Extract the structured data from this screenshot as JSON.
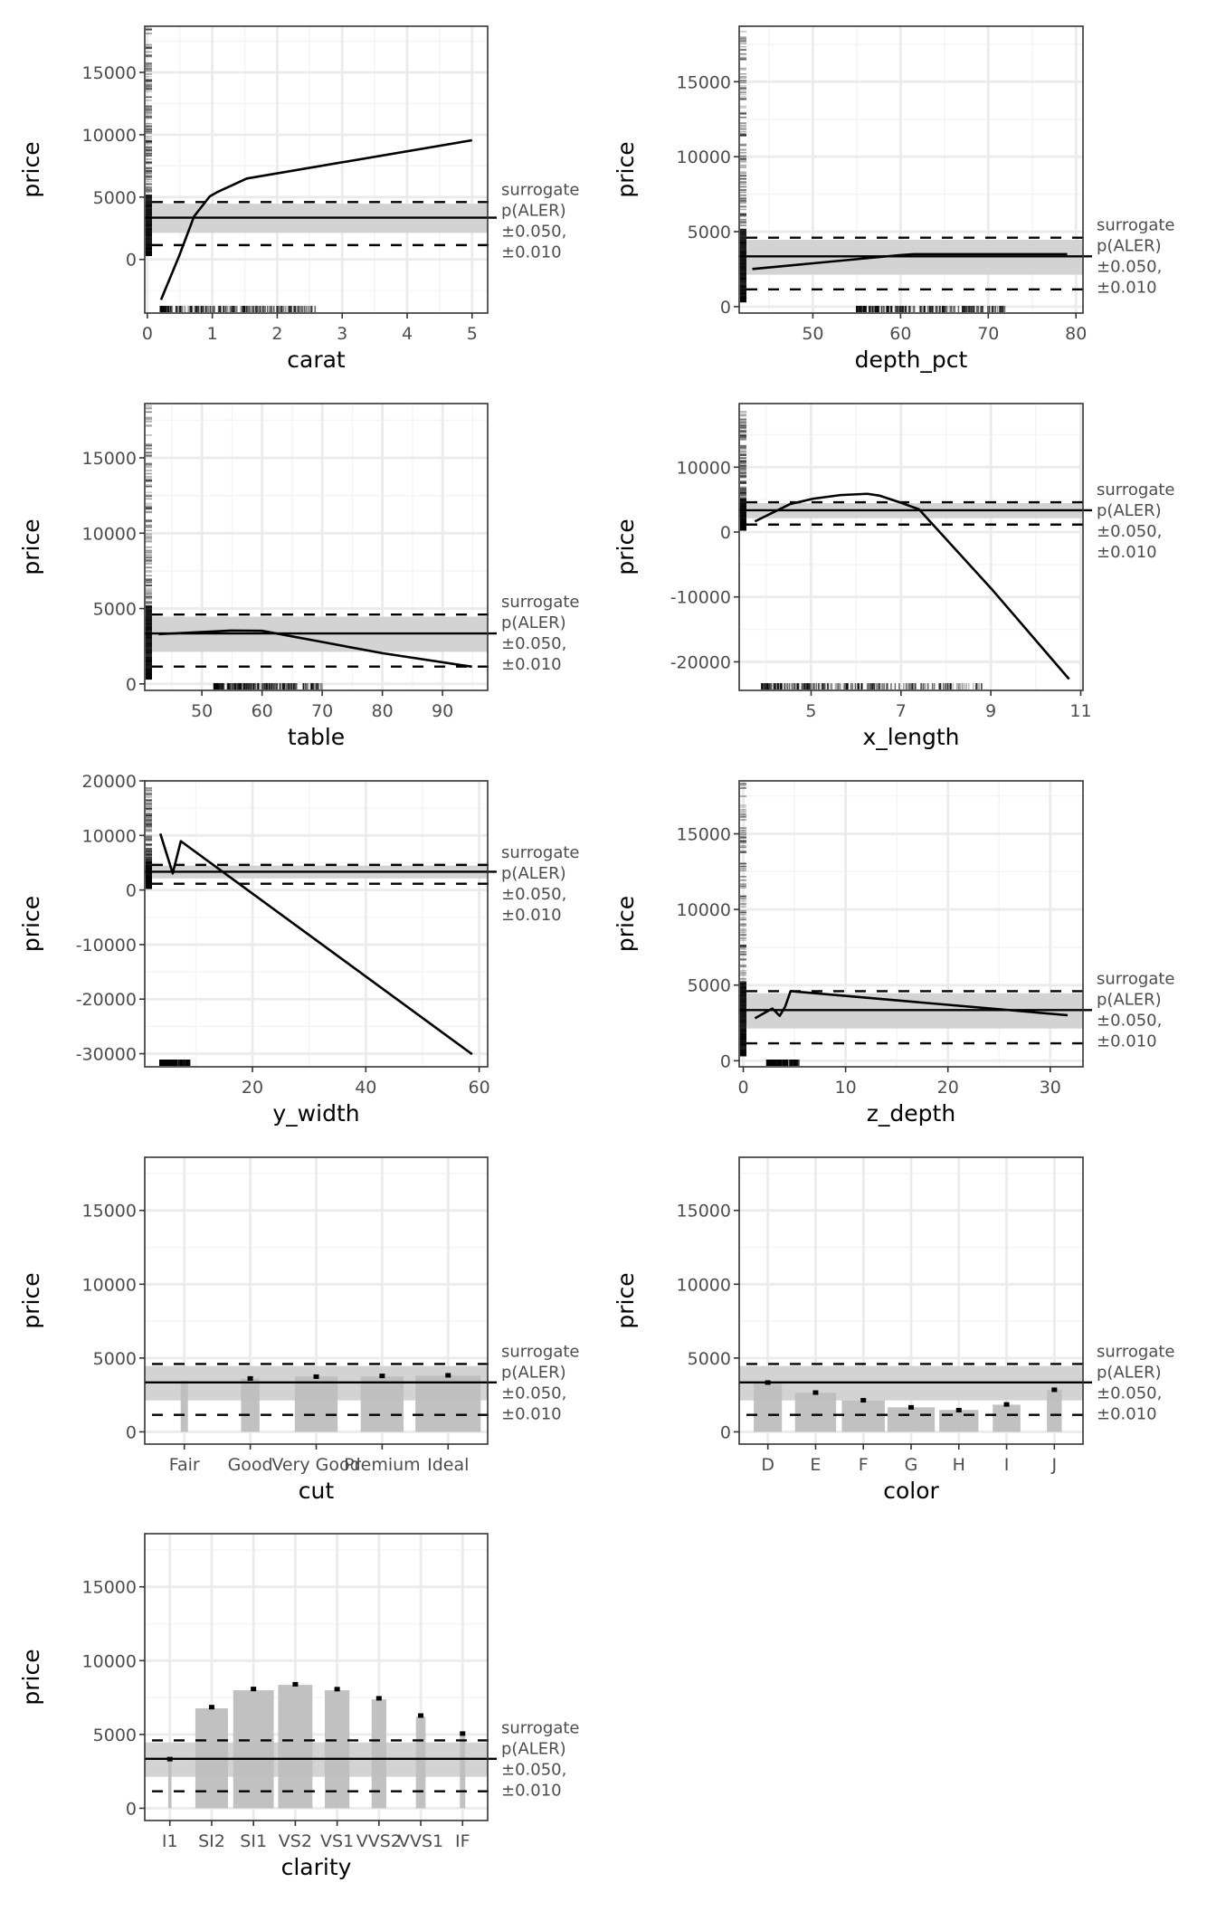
{
  "figure": {
    "description": "ALE plots of surrogate model for diamond price, one panel per feature",
    "colors": {
      "background": "#ffffff",
      "panel_border": "#333333",
      "grid_major": "#ebebeb",
      "grid_minor": "#f4f4f4",
      "band_fill": "#d3d3d3",
      "bar_fill": "#bebebe",
      "line": "#000000",
      "text_ticks": "#4d4d4d",
      "text_title": "#000000"
    },
    "annotation_lines": [
      "surrogate",
      "p(ALER)",
      "±0.050,",
      "±0.010"
    ]
  },
  "chart_data": [
    {
      "type": "line",
      "xlabel": "carat",
      "ylabel": "price",
      "xlim": [
        -0.04,
        5.24
      ],
      "ylim": [
        -4300,
        18700
      ],
      "xticks": [
        0,
        1,
        2,
        3,
        4,
        5
      ],
      "yticks": [
        0,
        5000,
        10000,
        15000
      ],
      "x": [
        0.21,
        0.49,
        0.72,
        0.96,
        1.08,
        1.53,
        5.0
      ],
      "y": [
        -3240,
        290,
        3460,
        5050,
        5410,
        6490,
        9560
      ],
      "reference": {
        "center": 3350,
        "band": [
          2130,
          4460
        ],
        "dashed": [
          1150,
          4600
        ]
      },
      "rug_x": [
        0.2,
        2.6
      ],
      "rug_y": [
        330,
        18800
      ]
    },
    {
      "type": "line",
      "xlabel": "depth_pct",
      "ylabel": "price",
      "xlim": [
        41.6,
        80.8
      ],
      "ylim": [
        -430,
        18700
      ],
      "xticks": [
        50,
        60,
        70,
        80
      ],
      "yticks": [
        0,
        5000,
        10000,
        15000
      ],
      "x": [
        43.1,
        60,
        61.5,
        79
      ],
      "y": [
        2510,
        3440,
        3500,
        3500
      ],
      "reference": {
        "center": 3350,
        "band": [
          2130,
          4460
        ],
        "dashed": [
          1150,
          4600
        ]
      },
      "rug_x": [
        55,
        72
      ],
      "rug_y": [
        330,
        18800
      ]
    },
    {
      "type": "line",
      "xlabel": "table",
      "ylabel": "price",
      "xlim": [
        40.5,
        97.5
      ],
      "ylim": [
        -430,
        18600
      ],
      "xticks": [
        50,
        60,
        70,
        80,
        90
      ],
      "yticks": [
        0,
        5000,
        10000,
        15000
      ],
      "x": [
        42.8,
        55,
        60,
        70,
        80,
        94.9
      ],
      "y": [
        3300,
        3540,
        3520,
        2780,
        2040,
        1140
      ],
      "reference": {
        "center": 3350,
        "band": [
          2130,
          4460
        ],
        "dashed": [
          1150,
          4600
        ]
      },
      "rug_x": [
        52,
        70
      ],
      "rug_y": [
        330,
        18800
      ]
    },
    {
      "type": "line",
      "xlabel": "x_length",
      "ylabel": "price",
      "xlim": [
        3.4,
        11.05
      ],
      "ylim": [
        -24400,
        19800
      ],
      "xticks": [
        5,
        7,
        9,
        11
      ],
      "yticks": [
        -20000,
        -10000,
        0,
        10000
      ],
      "x": [
        3.75,
        4.53,
        5.05,
        5.66,
        6.25,
        6.53,
        7.03,
        7.4,
        9.03,
        10.74
      ],
      "y": [
        1640,
        4300,
        5140,
        5700,
        5890,
        5600,
        4440,
        3500,
        -8880,
        -22660
      ],
      "reference": {
        "center": 3350,
        "band": [
          2130,
          4460
        ],
        "dashed": [
          1150,
          4600
        ]
      },
      "rug_x": [
        3.9,
        8.8
      ],
      "rug_y": [
        330,
        18800
      ]
    },
    {
      "type": "line",
      "xlabel": "y_width",
      "ylabel": "price",
      "xlim": [
        1.0,
        61.5
      ],
      "ylim": [
        -32400,
        20000
      ],
      "xticks": [
        20,
        40,
        60
      ],
      "yticks": [
        -30000,
        -20000,
        -10000,
        0,
        10000,
        20000
      ],
      "x": [
        3.75,
        5.93,
        7.36,
        58.76
      ],
      "y": [
        10330,
        3040,
        8950,
        -30100
      ],
      "reference": {
        "center": 3350,
        "band": [
          2130,
          4460
        ],
        "dashed": [
          1150,
          4600
        ]
      },
      "rug_x": [
        3.7,
        9.0
      ],
      "rug_y": [
        330,
        18800
      ]
    },
    {
      "type": "line",
      "xlabel": "z_depth",
      "ylabel": "price",
      "xlim": [
        -0.4,
        33.2
      ],
      "ylim": [
        -400,
        18500
      ],
      "xticks": [
        0,
        10,
        20,
        30
      ],
      "yticks": [
        0,
        5000,
        10000,
        15000
      ],
      "x": [
        1.14,
        2.84,
        3.56,
        4.09,
        4.62,
        31.7
      ],
      "y": [
        2810,
        3450,
        2970,
        3570,
        4600,
        3010
      ],
      "reference": {
        "center": 3350,
        "band": [
          2130,
          4460
        ],
        "dashed": [
          1150,
          4600
        ]
      },
      "rug_x": [
        2.3,
        5.5
      ],
      "rug_y": [
        330,
        18800
      ]
    },
    {
      "type": "bar",
      "xlabel": "cut",
      "ylabel": "price",
      "ylim": [
        -830,
        18600
      ],
      "yticks": [
        0,
        5000,
        10000,
        15000
      ],
      "categories": [
        "Fair",
        "Good",
        "Very Good",
        "Premium",
        "Ideal"
      ],
      "values": [
        3460,
        3610,
        3750,
        3750,
        3810
      ],
      "points": [
        null,
        3620,
        3740,
        3790,
        3830
      ],
      "bar_widths": [
        0.11,
        0.28,
        0.65,
        0.65,
        0.99
      ],
      "reference": {
        "center": 3350,
        "band": [
          2130,
          4460
        ],
        "dashed": [
          1150,
          4600
        ]
      }
    },
    {
      "type": "bar",
      "xlabel": "color",
      "ylabel": "price",
      "ylim": [
        -830,
        18600
      ],
      "yticks": [
        0,
        5000,
        10000,
        15000
      ],
      "categories": [
        "D",
        "E",
        "F",
        "G",
        "H",
        "I",
        "J"
      ],
      "values": [
        3340,
        2640,
        2130,
        1660,
        1480,
        1840,
        2830
      ],
      "points": [
        3340,
        2660,
        2140,
        1660,
        1470,
        1860,
        2850
      ],
      "bar_widths": [
        0.59,
        0.86,
        0.9,
        0.99,
        0.82,
        0.58,
        0.31
      ],
      "reference": {
        "center": 3350,
        "band": [
          2130,
          4460
        ],
        "dashed": [
          1150,
          4600
        ]
      }
    },
    {
      "type": "bar",
      "xlabel": "clarity",
      "ylabel": "price",
      "ylim": [
        -830,
        18600
      ],
      "yticks": [
        0,
        5000,
        10000,
        15000
      ],
      "categories": [
        "I1",
        "SI2",
        "SI1",
        "VS2",
        "VS1",
        "VVS2",
        "VVS1",
        "IF"
      ],
      "values": [
        3330,
        6770,
        8000,
        8360,
        8000,
        7380,
        6200,
        5010
      ],
      "points": [
        3330,
        6850,
        8080,
        8400,
        8070,
        7450,
        6280,
        5060
      ],
      "bar_widths": [
        0.08,
        0.78,
        0.97,
        0.82,
        0.59,
        0.35,
        0.23,
        0.13
      ],
      "reference": {
        "center": 3350,
        "band": [
          2130,
          4460
        ],
        "dashed": [
          1150,
          4600
        ]
      }
    }
  ]
}
